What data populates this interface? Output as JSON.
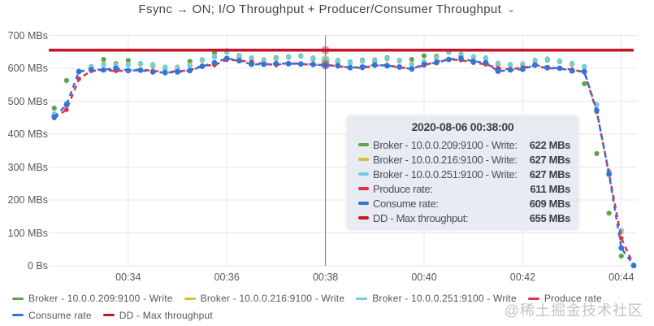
{
  "panel": {
    "title": "Fsync → ON; I/O Throughput + Producer/Consumer Throughput",
    "menu_icon": "⌄"
  },
  "chart_data": {
    "type": "line",
    "title": "Fsync → ON; I/O Throughput + Producer/Consumer Throughput",
    "xlabel": "",
    "ylabel": "",
    "ylim": [
      0,
      700
    ],
    "grid": true,
    "legend_position": "bottom",
    "crosshair_time": "00:38:00",
    "yticks": [
      {
        "value": 0,
        "label": "0 Bs"
      },
      {
        "value": 100,
        "label": "100 MBs"
      },
      {
        "value": 200,
        "label": "200 MBs"
      },
      {
        "value": 300,
        "label": "300 MBs"
      },
      {
        "value": 400,
        "label": "400 MBs"
      },
      {
        "value": 500,
        "label": "500 MBs"
      },
      {
        "value": 600,
        "label": "600 MBs"
      },
      {
        "value": 700,
        "label": "700 MBs"
      }
    ],
    "xticks": [
      "00:34",
      "00:36",
      "00:38",
      "00:40",
      "00:42",
      "00:44"
    ],
    "x": [
      "00:32:30",
      "00:32:45",
      "00:33:00",
      "00:33:15",
      "00:33:30",
      "00:33:45",
      "00:34:00",
      "00:34:15",
      "00:34:30",
      "00:34:45",
      "00:35:00",
      "00:35:15",
      "00:35:30",
      "00:35:45",
      "00:36:00",
      "00:36:15",
      "00:36:30",
      "00:36:45",
      "00:37:00",
      "00:37:15",
      "00:37:30",
      "00:37:45",
      "00:38:00",
      "00:38:15",
      "00:38:30",
      "00:38:45",
      "00:39:00",
      "00:39:15",
      "00:39:30",
      "00:39:45",
      "00:40:00",
      "00:40:15",
      "00:40:30",
      "00:40:45",
      "00:41:00",
      "00:41:15",
      "00:41:30",
      "00:41:45",
      "00:42:00",
      "00:42:15",
      "00:42:30",
      "00:42:45",
      "00:43:00",
      "00:43:15",
      "00:43:30",
      "00:43:45",
      "00:44:00",
      "00:44:15"
    ],
    "series": [
      {
        "name": "Broker - 10.0.0.209:9100 - Write",
        "color": "#5aa64b",
        "style": "points",
        "values": [
          479,
          563,
          590,
          602,
          627,
          614,
          624,
          613,
          608,
          600,
          598,
          621,
          624,
          647,
          653,
          635,
          628,
          622,
          632,
          633,
          638,
          628,
          622,
          620,
          619,
          625,
          622,
          632,
          622,
          627,
          638,
          636,
          649,
          639,
          633,
          629,
          611,
          609,
          610,
          622,
          625,
          620,
          612,
          553,
          341,
          160,
          30,
          0
        ]
      },
      {
        "name": "Broker - 10.0.0.216:9100 - Write",
        "color": "#d3c13a",
        "style": "points",
        "values": [
          458,
          490,
          589,
          606,
          613,
          610,
          612,
          613,
          610,
          603,
          604,
          610,
          625,
          636,
          648,
          640,
          630,
          627,
          628,
          634,
          637,
          632,
          627,
          625,
          615,
          621,
          627,
          628,
          623,
          614,
          621,
          632,
          648,
          644,
          634,
          630,
          616,
          610,
          614,
          623,
          629,
          621,
          613,
          604,
          488,
          288,
          103,
          2
        ]
      },
      {
        "name": "Broker - 10.0.0.251:9100 - Write",
        "color": "#6fcfdd",
        "style": "points",
        "values": [
          462,
          494,
          591,
          605,
          611,
          608,
          610,
          615,
          612,
          604,
          602,
          608,
          627,
          634,
          649,
          638,
          632,
          625,
          630,
          636,
          636,
          630,
          627,
          623,
          617,
          623,
          625,
          630,
          625,
          612,
          619,
          630,
          650,
          642,
          636,
          632,
          614,
          612,
          612,
          625,
          627,
          623,
          615,
          606,
          490,
          285,
          108,
          3
        ]
      },
      {
        "name": "Produce rate",
        "color": "#e0304a",
        "style": "dashed_line_points",
        "values": [
          449,
          474,
          568,
          592,
          594,
          592,
          593,
          596,
          592,
          589,
          591,
          594,
          608,
          610,
          626,
          624,
          619,
          613,
          610,
          616,
          613,
          610,
          611,
          606,
          603,
          601,
          608,
          610,
          602,
          600,
          609,
          620,
          627,
          625,
          617,
          612,
          600,
          597,
          602,
          608,
          600,
          600,
          596,
          588,
          468,
          281,
          84,
          2
        ]
      },
      {
        "name": "Consume rate",
        "color": "#3274d9",
        "style": "dashed_line_points",
        "values": [
          452,
          489,
          590,
          596,
          595,
          600,
          593,
          594,
          589,
          587,
          589,
          593,
          606,
          617,
          630,
          623,
          612,
          612,
          614,
          614,
          613,
          612,
          609,
          608,
          602,
          604,
          610,
          608,
          604,
          598,
          612,
          617,
          627,
          630,
          621,
          617,
          591,
          595,
          597,
          610,
          602,
          600,
          592,
          590,
          472,
          278,
          54,
          1
        ]
      },
      {
        "name": "DD - Max throughput",
        "color": "#c4162a",
        "style": "thick_line",
        "values": [
          655,
          655,
          655,
          655,
          655,
          655,
          655,
          655,
          655,
          655,
          655,
          655,
          655,
          655,
          655,
          655,
          655,
          655,
          655,
          655,
          655,
          655,
          655,
          655,
          655,
          655,
          655,
          655,
          655,
          655,
          655,
          655,
          655,
          655,
          655,
          655,
          655,
          655,
          655,
          655,
          655,
          655,
          655,
          655,
          655,
          655,
          655,
          655
        ]
      }
    ]
  },
  "tooltip": {
    "title": "2020-08-06 00:38:00",
    "rows": [
      {
        "label": "Broker - 10.0.0.209:9100 - Write:",
        "value": "622 MBs",
        "color": "#5aa64b"
      },
      {
        "label": "Broker - 10.0.0.216:9100 - Write:",
        "value": "627 MBs",
        "color": "#d3c13a"
      },
      {
        "label": "Broker - 10.0.0.251:9100 - Write:",
        "value": "627 MBs",
        "color": "#6fcfdd"
      },
      {
        "label": "Produce rate:",
        "value": "611 MBs",
        "color": "#e0304a"
      },
      {
        "label": "Consume rate:",
        "value": "609 MBs",
        "color": "#3274d9"
      },
      {
        "label": "DD - Max throughput:",
        "value": "655 MBs",
        "color": "#c4162a"
      }
    ]
  },
  "legend": {
    "rows": [
      [
        {
          "label": "Broker - 10.0.0.209:9100 - Write",
          "color": "#5aa64b"
        },
        {
          "label": "Broker - 10.0.0.216:9100 - Write",
          "color": "#d3c13a"
        },
        {
          "label": "Broker - 10.0.0.251:9100 - Write",
          "color": "#6fcfdd"
        },
        {
          "label": "Produce rate",
          "color": "#e0304a"
        }
      ],
      [
        {
          "label": "Consume rate",
          "color": "#3274d9"
        },
        {
          "label": "DD - Max throughput",
          "color": "#c4162a"
        }
      ]
    ]
  },
  "watermark": "@稀土掘金技术社区",
  "colors": {
    "grid": "#e7e7e7",
    "crosshair": "#8b3535",
    "background": "#ffffff"
  }
}
